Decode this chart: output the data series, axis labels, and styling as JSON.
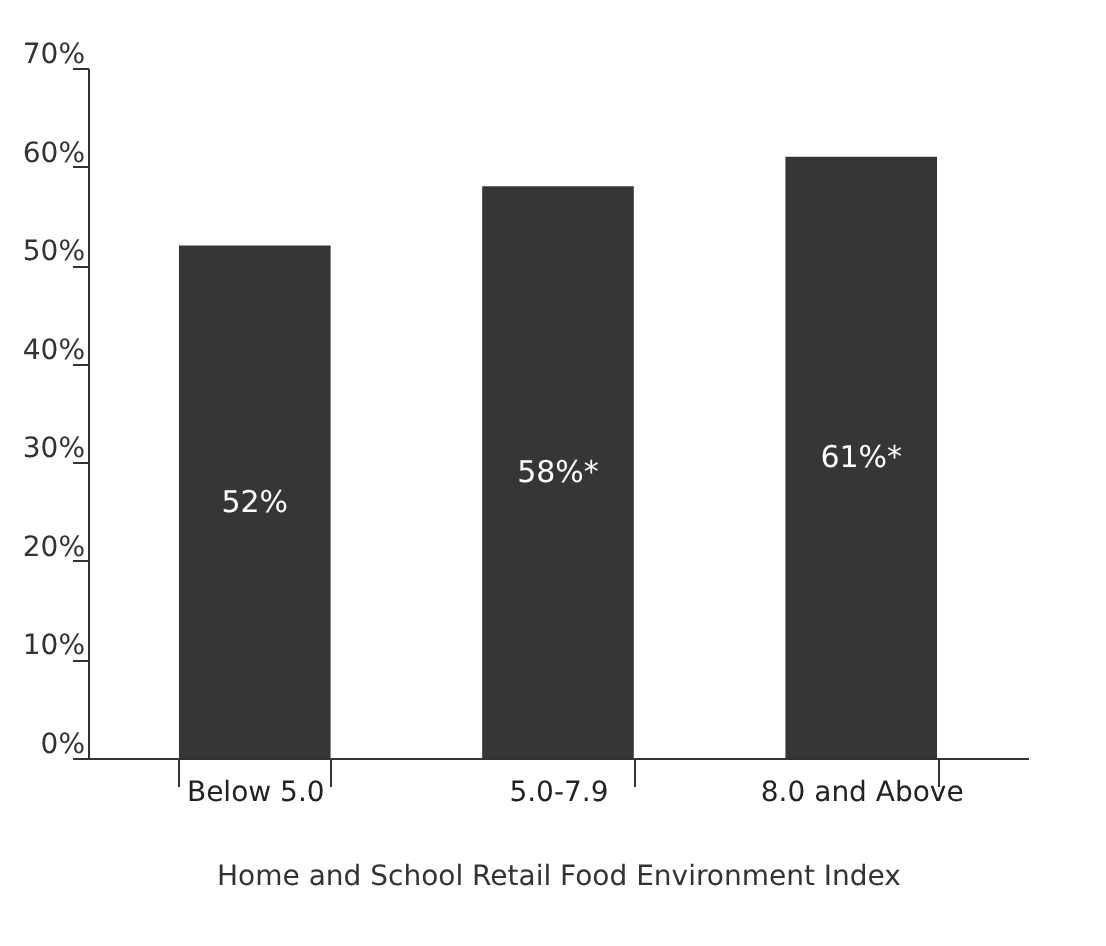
{
  "chart_data": {
    "type": "bar",
    "xlabel": "Home and School Retail Food Environment Index",
    "categories": [
      "Below 5.0",
      "5.0-7.9",
      "8.0 and Above"
    ],
    "values": [
      52,
      58,
      61
    ],
    "color": "#363636",
    "value_labels": [
      "52%",
      "58%*",
      "61%*"
    ],
    "ylim": [
      0,
      70
    ],
    "yticks": [
      {
        "value": 0,
        "label": "0%"
      },
      {
        "value": 10,
        "label": "10%"
      },
      {
        "value": 20,
        "label": "20%"
      },
      {
        "value": 30,
        "label": "30%"
      },
      {
        "value": 40,
        "label": "40%"
      },
      {
        "value": 50,
        "label": "50%"
      },
      {
        "value": 60,
        "label": "60%"
      },
      {
        "value": 70,
        "label": "70%"
      }
    ],
    "grid": false
  }
}
